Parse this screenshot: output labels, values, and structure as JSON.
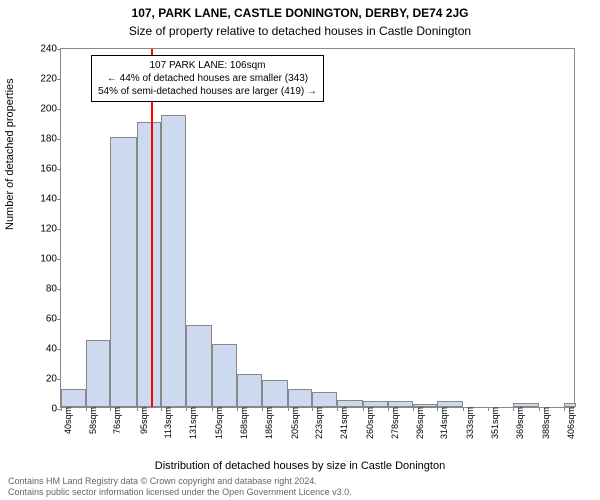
{
  "titles": {
    "main": "107, PARK LANE, CASTLE DONINGTON, DERBY, DE74 2JG",
    "sub": "Size of property relative to detached houses in Castle Donington",
    "xlabel": "Distribution of detached houses by size in Castle Donington",
    "ylabel": "Number of detached properties"
  },
  "footer": {
    "line1": "Contains HM Land Registry data © Crown copyright and database right 2024.",
    "line2": "Contains public sector information licensed under the Open Government Licence v3.0."
  },
  "annotation": {
    "line1": "107 PARK LANE: 106sqm",
    "line2": "← 44% of detached houses are smaller (343)",
    "line3": "54% of semi-detached houses are larger (419) →"
  },
  "chart": {
    "type": "histogram",
    "ylim": [
      0,
      240
    ],
    "yticks": [
      0,
      20,
      40,
      60,
      80,
      100,
      120,
      140,
      160,
      180,
      200,
      220,
      240
    ],
    "xlim": [
      40,
      415
    ],
    "xticks": [
      40,
      58,
      76,
      95,
      113,
      131,
      150,
      168,
      186,
      205,
      223,
      241,
      260,
      278,
      296,
      314,
      333,
      351,
      369,
      388,
      406
    ],
    "xtick_suffix": "sqm",
    "bar_color": "#cdd9ee",
    "bar_border": "#888888",
    "marker_x": 106,
    "marker_color": "#ff0000",
    "background_color": "#ffffff",
    "bars": [
      {
        "x0": 40,
        "x1": 58,
        "y": 12
      },
      {
        "x0": 58,
        "x1": 76,
        "y": 45
      },
      {
        "x0": 76,
        "x1": 95,
        "y": 180
      },
      {
        "x0": 95,
        "x1": 113,
        "y": 190
      },
      {
        "x0": 113,
        "x1": 131,
        "y": 195
      },
      {
        "x0": 131,
        "x1": 150,
        "y": 55
      },
      {
        "x0": 150,
        "x1": 168,
        "y": 42
      },
      {
        "x0": 168,
        "x1": 186,
        "y": 22
      },
      {
        "x0": 186,
        "x1": 205,
        "y": 18
      },
      {
        "x0": 205,
        "x1": 223,
        "y": 12
      },
      {
        "x0": 223,
        "x1": 241,
        "y": 10
      },
      {
        "x0": 241,
        "x1": 260,
        "y": 5
      },
      {
        "x0": 260,
        "x1": 278,
        "y": 4
      },
      {
        "x0": 278,
        "x1": 296,
        "y": 4
      },
      {
        "x0": 296,
        "x1": 314,
        "y": 2
      },
      {
        "x0": 314,
        "x1": 333,
        "y": 4
      },
      {
        "x0": 333,
        "x1": 351,
        "y": 0
      },
      {
        "x0": 351,
        "x1": 369,
        "y": 0
      },
      {
        "x0": 369,
        "x1": 388,
        "y": 3
      },
      {
        "x0": 388,
        "x1": 406,
        "y": 0
      },
      {
        "x0": 406,
        "x1": 415,
        "y": 3
      }
    ]
  }
}
